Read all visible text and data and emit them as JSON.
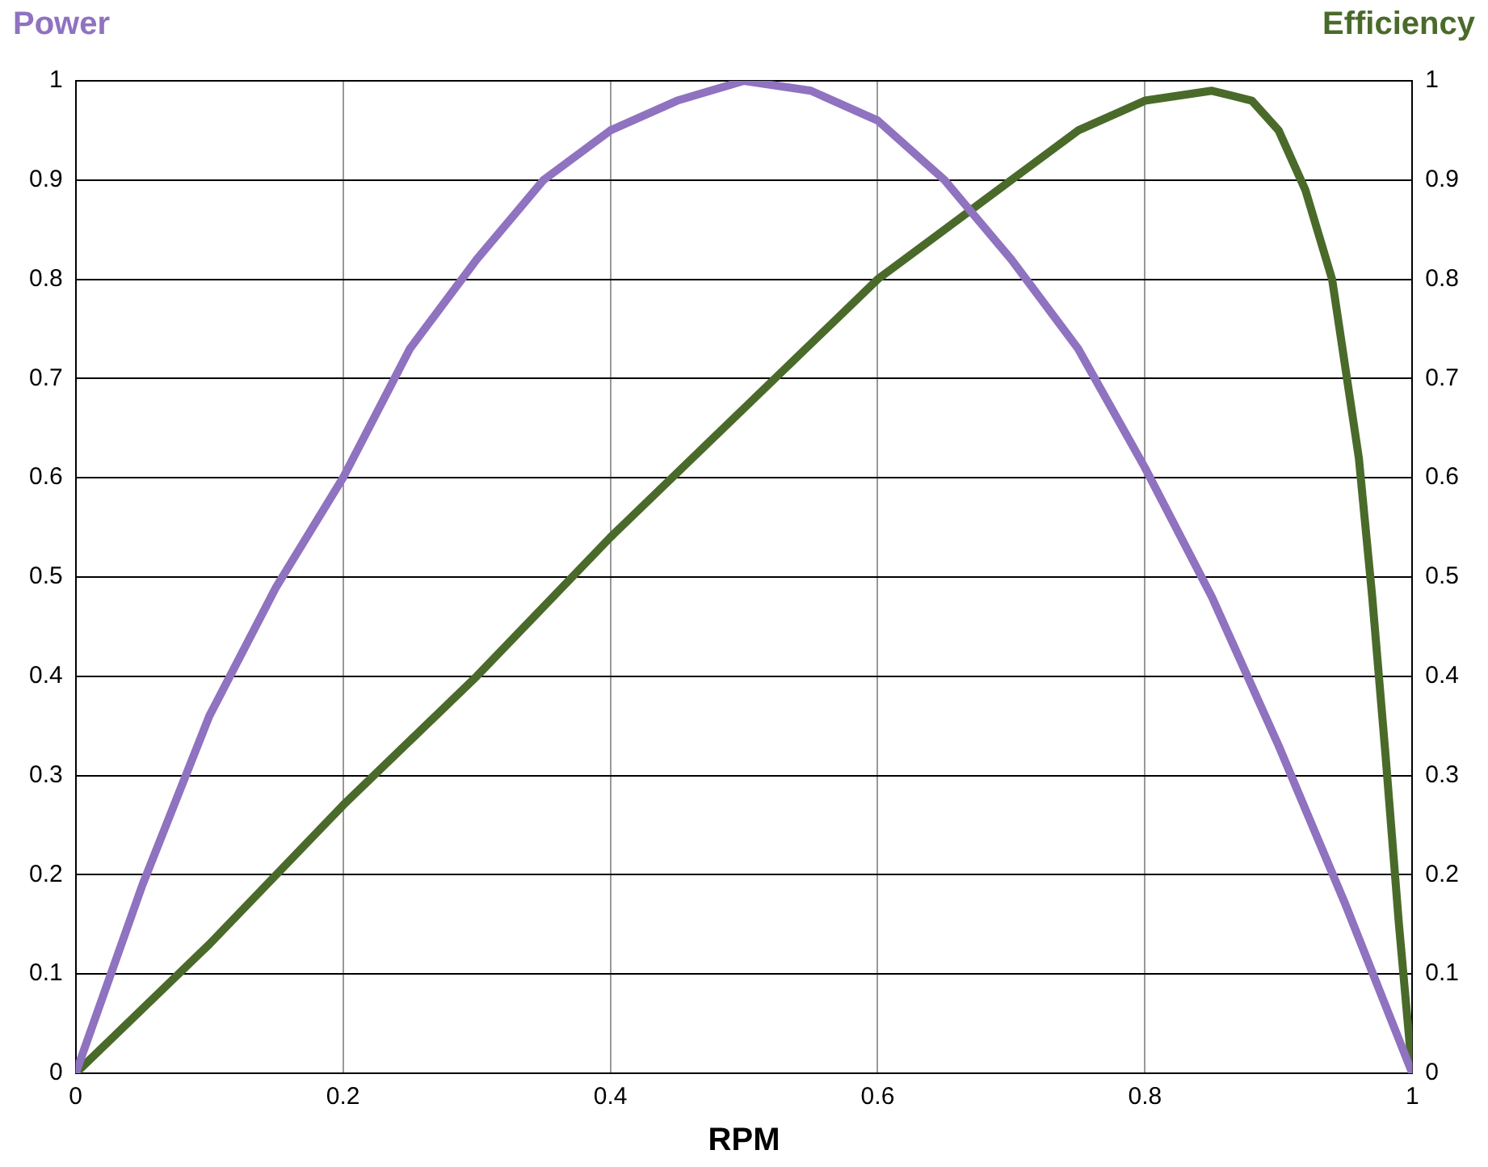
{
  "chart_data": {
    "type": "line",
    "xlabel": "RPM",
    "ylabel": "Power",
    "y2label": "Efficiency",
    "xlim": [
      0,
      1
    ],
    "xticks": [
      0,
      0.2,
      0.4,
      0.6,
      0.8,
      1
    ],
    "ylim": [
      0,
      1
    ],
    "yticks": [
      0,
      0.1,
      0.2,
      0.3,
      0.4,
      0.5,
      0.6,
      0.7,
      0.8,
      0.9,
      1
    ],
    "y2lim": [
      0,
      1
    ],
    "y2ticks": [
      0,
      0.1,
      0.2,
      0.3,
      0.4,
      0.5,
      0.6,
      0.7,
      0.8,
      0.9,
      1
    ],
    "grid": true,
    "legend": false,
    "marker": "none",
    "line_style": "solid",
    "series": [
      {
        "color": "#8f72c0",
        "x": [
          0,
          0.05,
          0.1,
          0.15,
          0.2,
          0.25,
          0.3,
          0.35,
          0.4,
          0.45,
          0.5,
          0.55,
          0.6,
          0.65,
          0.7,
          0.75,
          0.8,
          0.85,
          0.9,
          0.95,
          1
        ],
        "values": [
          0,
          0.19,
          0.36,
          0.49,
          0.6,
          0.73,
          0.82,
          0.9,
          0.95,
          0.98,
          1,
          0.99,
          0.96,
          0.9,
          0.82,
          0.73,
          0.61,
          0.48,
          0.33,
          0.17,
          0
        ]
      },
      {
        "color": "#4a6a2a",
        "axis": "y2",
        "x": [
          0,
          0.1,
          0.2,
          0.3,
          0.4,
          0.5,
          0.6,
          0.65,
          0.7,
          0.75,
          0.8,
          0.85,
          0.88,
          0.9,
          0.92,
          0.94,
          0.96,
          0.97,
          0.98,
          0.99,
          1
        ],
        "values": [
          0,
          0.13,
          0.27,
          0.4,
          0.54,
          0.67,
          0.8,
          0.85,
          0.9,
          0.95,
          0.98,
          0.99,
          0.98,
          0.95,
          0.89,
          0.8,
          0.62,
          0.48,
          0.32,
          0.15,
          0
        ]
      }
    ]
  }
}
